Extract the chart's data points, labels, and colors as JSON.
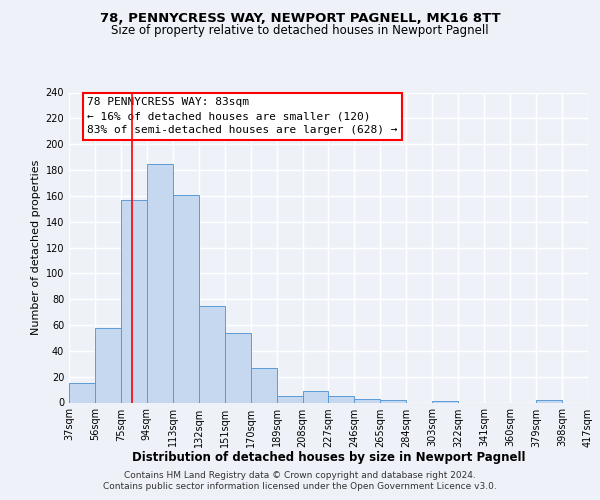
{
  "title": "78, PENNYCRESS WAY, NEWPORT PAGNELL, MK16 8TT",
  "subtitle": "Size of property relative to detached houses in Newport Pagnell",
  "xlabel": "Distribution of detached houses by size in Newport Pagnell",
  "ylabel": "Number of detached properties",
  "bin_edges": [
    37,
    56,
    75,
    94,
    113,
    132,
    151,
    170,
    189,
    208,
    227,
    246,
    265,
    284,
    303,
    322,
    341,
    360,
    379,
    398,
    417
  ],
  "bar_heights": [
    15,
    58,
    157,
    185,
    161,
    75,
    54,
    27,
    5,
    9,
    5,
    3,
    2,
    0,
    1,
    0,
    0,
    0,
    2,
    0
  ],
  "bar_color": "#c5d8f0",
  "bar_edgecolor": "#5b9bd5",
  "tick_labels": [
    "37sqm",
    "56sqm",
    "75sqm",
    "94sqm",
    "113sqm",
    "132sqm",
    "151sqm",
    "170sqm",
    "189sqm",
    "208sqm",
    "227sqm",
    "246sqm",
    "265sqm",
    "284sqm",
    "303sqm",
    "322sqm",
    "341sqm",
    "360sqm",
    "379sqm",
    "398sqm",
    "417sqm"
  ],
  "ylim": [
    0,
    240
  ],
  "yticks": [
    0,
    20,
    40,
    60,
    80,
    100,
    120,
    140,
    160,
    180,
    200,
    220,
    240
  ],
  "red_line_x": 83,
  "annotation_title": "78 PENNYCRESS WAY: 83sqm",
  "annotation_line1": "← 16% of detached houses are smaller (120)",
  "annotation_line2": "83% of semi-detached houses are larger (628) →",
  "footer1": "Contains HM Land Registry data © Crown copyright and database right 2024.",
  "footer2": "Contains public sector information licensed under the Open Government Licence v3.0.",
  "background_color": "#eef2f8",
  "grid_color": "#ffffff",
  "title_fontsize": 9.5,
  "subtitle_fontsize": 8.5,
  "xlabel_fontsize": 8.5,
  "ylabel_fontsize": 8,
  "tick_fontsize": 7,
  "annotation_fontsize": 8,
  "footer_fontsize": 6.5
}
